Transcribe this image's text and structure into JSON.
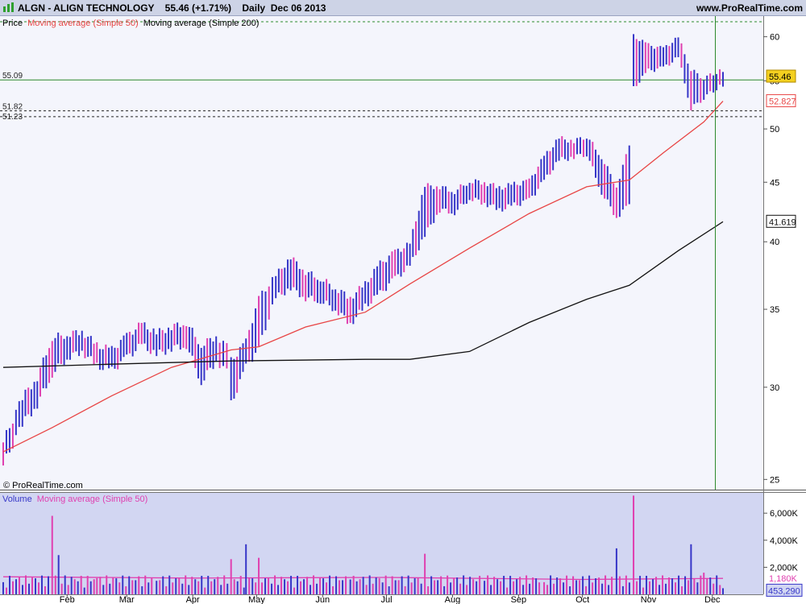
{
  "header": {
    "title": "ALGN - ALIGN TECHNOLOGY    55.46 (+1.71%)    Daily  Dec 06 2013",
    "site": "www.ProRealTime.com",
    "logo_icon": "prorealtime-bars-icon"
  },
  "price_panel": {
    "legend": {
      "price": "Price",
      "ma50": "Moving average (Simple 50)",
      "ma200": "Moving average (Simple 200)"
    },
    "copyright": "© ProRealTime.com",
    "last_price": "55.46",
    "ma50_value": "52.827",
    "ma200_value": "41.619",
    "level_labels": [
      "55.09",
      "51.82",
      "51.23"
    ],
    "colors": {
      "up_bar": "#3636c8",
      "down_bar": "#e040b0",
      "ma50": "#e84545",
      "ma200": "#111111",
      "level_line": "#2d8a2d",
      "last_price_tag": "#f4d020",
      "background": "#f4f5fc"
    }
  },
  "volume_panel": {
    "legend": {
      "volume": "Volume",
      "ma": "Moving average (Simple 50)"
    },
    "ma_value": "1,180K",
    "last_value": "453,290"
  },
  "x_labels": [
    "Feb",
    "Mar",
    "Apr",
    "May",
    "Jun",
    "Jul",
    "Aug",
    "Sep",
    "Oct",
    "Nov",
    "Dec"
  ],
  "chart_data": [
    {
      "type": "bar",
      "title": "ALGN - ALIGN TECHNOLOGY",
      "scale": "log",
      "ylim": [
        24.5,
        62.5
      ],
      "y_ticks": [
        25,
        30,
        35,
        40,
        45,
        50,
        55,
        60
      ],
      "x_ticks": [
        "Feb",
        "Mar",
        "Apr",
        "May",
        "Jun",
        "Jul",
        "Aug",
        "Sep",
        "Oct",
        "Nov",
        "Dec"
      ],
      "series": [
        {
          "name": "Price",
          "kind": "ohlc",
          "points": [
            {
              "date": "2013-01-02",
              "low": 25.7,
              "high": 26.9
            },
            {
              "date": "2013-01-11",
              "low": 27.9,
              "high": 29.4
            },
            {
              "date": "2013-01-18",
              "low": 29.0,
              "high": 30.6
            },
            {
              "date": "2013-01-25",
              "low": 30.8,
              "high": 33.1
            },
            {
              "date": "2013-02-01",
              "low": 31.8,
              "high": 33.3
            },
            {
              "date": "2013-02-08",
              "low": 32.2,
              "high": 33.5
            },
            {
              "date": "2013-02-15",
              "low": 31.3,
              "high": 32.6
            },
            {
              "date": "2013-02-22",
              "low": 31.0,
              "high": 32.3
            },
            {
              "date": "2013-03-01",
              "low": 31.8,
              "high": 33.2
            },
            {
              "date": "2013-03-08",
              "low": 32.6,
              "high": 34.0
            },
            {
              "date": "2013-03-15",
              "low": 32.0,
              "high": 33.4
            },
            {
              "date": "2013-03-22",
              "low": 32.4,
              "high": 33.8
            },
            {
              "date": "2013-03-29",
              "low": 32.6,
              "high": 34.1
            },
            {
              "date": "2013-04-05",
              "low": 30.3,
              "high": 32.6
            },
            {
              "date": "2013-04-12",
              "low": 31.6,
              "high": 33.2
            },
            {
              "date": "2013-04-17",
              "low": 31.0,
              "high": 32.6
            },
            {
              "date": "2013-04-19",
              "low": 29.0,
              "high": 31.6
            },
            {
              "date": "2013-04-26",
              "low": 31.2,
              "high": 32.8
            },
            {
              "date": "2013-05-02",
              "low": 32.4,
              "high": 35.8
            },
            {
              "date": "2013-05-10",
              "low": 35.8,
              "high": 37.4
            },
            {
              "date": "2013-05-17",
              "low": 36.5,
              "high": 38.8
            },
            {
              "date": "2013-05-24",
              "low": 35.8,
              "high": 37.7
            },
            {
              "date": "2013-05-31",
              "low": 35.6,
              "high": 37.2
            },
            {
              "date": "2013-06-07",
              "low": 35.0,
              "high": 36.5
            },
            {
              "date": "2013-06-14",
              "low": 34.0,
              "high": 35.8
            },
            {
              "date": "2013-06-21",
              "low": 35.2,
              "high": 36.8
            },
            {
              "date": "2013-06-28",
              "low": 36.1,
              "high": 38.3
            },
            {
              "date": "2013-07-05",
              "low": 37.2,
              "high": 39.2
            },
            {
              "date": "2013-07-12",
              "low": 38.1,
              "high": 39.8
            },
            {
              "date": "2013-07-19",
              "low": 40.5,
              "high": 44.7
            },
            {
              "date": "2013-07-26",
              "low": 42.6,
              "high": 44.6
            },
            {
              "date": "2013-08-02",
              "low": 42.4,
              "high": 44.2
            },
            {
              "date": "2013-08-09",
              "low": 43.6,
              "high": 45.1
            },
            {
              "date": "2013-08-16",
              "low": 43.2,
              "high": 45.0
            },
            {
              "date": "2013-08-23",
              "low": 42.6,
              "high": 44.5
            },
            {
              "date": "2013-08-30",
              "low": 43.0,
              "high": 44.8
            },
            {
              "date": "2013-09-06",
              "low": 43.4,
              "high": 45.1
            },
            {
              "date": "2013-09-13",
              "low": 45.1,
              "high": 47.3
            },
            {
              "date": "2013-09-20",
              "low": 47.0,
              "high": 49.1
            },
            {
              "date": "2013-09-27",
              "low": 47.3,
              "high": 48.8
            },
            {
              "date": "2013-10-03",
              "low": 47.6,
              "high": 49.3
            },
            {
              "date": "2013-10-10",
              "low": 44.1,
              "high": 47.3
            },
            {
              "date": "2013-10-17",
              "low": 42.0,
              "high": 44.6
            },
            {
              "date": "2013-10-23",
              "low": 43.0,
              "high": 48.3
            },
            {
              "date": "2013-10-25",
              "low": 54.2,
              "high": 60.1
            },
            {
              "date": "2013-11-01",
              "low": 56.1,
              "high": 59.0
            },
            {
              "date": "2013-11-08",
              "low": 56.4,
              "high": 58.6
            },
            {
              "date": "2013-11-15",
              "low": 57.6,
              "high": 59.9
            },
            {
              "date": "2013-11-21",
              "low": 52.0,
              "high": 56.2
            },
            {
              "date": "2013-11-27",
              "low": 53.2,
              "high": 55.3
            },
            {
              "date": "2013-12-06",
              "low": 54.6,
              "high": 56.2
            }
          ]
        },
        {
          "name": "Moving average (Simple 50)",
          "points": [
            {
              "date": "2013-01-02",
              "value": 26.4
            },
            {
              "date": "2013-01-25",
              "value": 27.7
            },
            {
              "date": "2013-02-22",
              "value": 29.5
            },
            {
              "date": "2013-03-22",
              "value": 31.2
            },
            {
              "date": "2013-04-19",
              "value": 32.3
            },
            {
              "date": "2013-05-02",
              "value": 32.5
            },
            {
              "date": "2013-05-24",
              "value": 33.8
            },
            {
              "date": "2013-06-21",
              "value": 34.8
            },
            {
              "date": "2013-07-12",
              "value": 36.8
            },
            {
              "date": "2013-08-09",
              "value": 39.5
            },
            {
              "date": "2013-09-06",
              "value": 42.3
            },
            {
              "date": "2013-10-03",
              "value": 44.6
            },
            {
              "date": "2013-10-23",
              "value": 45.2
            },
            {
              "date": "2013-11-08",
              "value": 47.7
            },
            {
              "date": "2013-11-27",
              "value": 50.7
            },
            {
              "date": "2013-12-06",
              "value": 52.827
            }
          ]
        },
        {
          "name": "Moving average (Simple 200)",
          "points": [
            {
              "date": "2013-01-02",
              "value": 31.2
            },
            {
              "date": "2013-02-22",
              "value": 31.4
            },
            {
              "date": "2013-04-19",
              "value": 31.6
            },
            {
              "date": "2013-06-21",
              "value": 31.7
            },
            {
              "date": "2013-07-12",
              "value": 31.7
            },
            {
              "date": "2013-08-09",
              "value": 32.2
            },
            {
              "date": "2013-09-06",
              "value": 34.1
            },
            {
              "date": "2013-10-03",
              "value": 35.7
            },
            {
              "date": "2013-10-23",
              "value": 36.7
            },
            {
              "date": "2013-11-15",
              "value": 39.3
            },
            {
              "date": "2013-12-06",
              "value": 41.619
            }
          ]
        }
      ],
      "levels": [
        55.09,
        51.82,
        51.23
      ],
      "last_price": 55.46,
      "grid": false,
      "legend": "top-left"
    },
    {
      "type": "bar",
      "title": "Volume",
      "ylim": [
        0,
        7500000
      ],
      "y_ticks": [
        2000000,
        4000000,
        6000000
      ],
      "y_tick_labels": [
        "2,000K",
        "4,000K",
        "6,000K"
      ],
      "series": [
        {
          "name": "Volume",
          "points": [
            {
              "date": "2013-01-02",
              "value": 900000
            },
            {
              "date": "2013-01-25",
              "value": 5800000
            },
            {
              "date": "2013-01-28",
              "value": 2900000
            },
            {
              "date": "2013-02-15",
              "value": 1200000
            },
            {
              "date": "2013-03-15",
              "value": 1000000
            },
            {
              "date": "2013-04-19",
              "value": 2600000
            },
            {
              "date": "2013-04-26",
              "value": 3700000
            },
            {
              "date": "2013-05-02",
              "value": 2700000
            },
            {
              "date": "2013-06-14",
              "value": 1100000
            },
            {
              "date": "2013-07-19",
              "value": 3000000
            },
            {
              "date": "2013-08-16",
              "value": 1000000
            },
            {
              "date": "2013-09-13",
              "value": 900000
            },
            {
              "date": "2013-10-17",
              "value": 3400000
            },
            {
              "date": "2013-10-25",
              "value": 7300000
            },
            {
              "date": "2013-11-21",
              "value": 3700000
            },
            {
              "date": "2013-11-27",
              "value": 1600000
            },
            {
              "date": "2013-12-06",
              "value": 453290
            }
          ]
        },
        {
          "name": "Moving average (Simple 50)",
          "points": [
            {
              "date": "2013-01-02",
              "value": 1300000
            },
            {
              "date": "2013-04-01",
              "value": 1200000
            },
            {
              "date": "2013-07-01",
              "value": 1250000
            },
            {
              "date": "2013-10-01",
              "value": 1100000
            },
            {
              "date": "2013-12-06",
              "value": 1180000
            }
          ]
        }
      ]
    }
  ]
}
